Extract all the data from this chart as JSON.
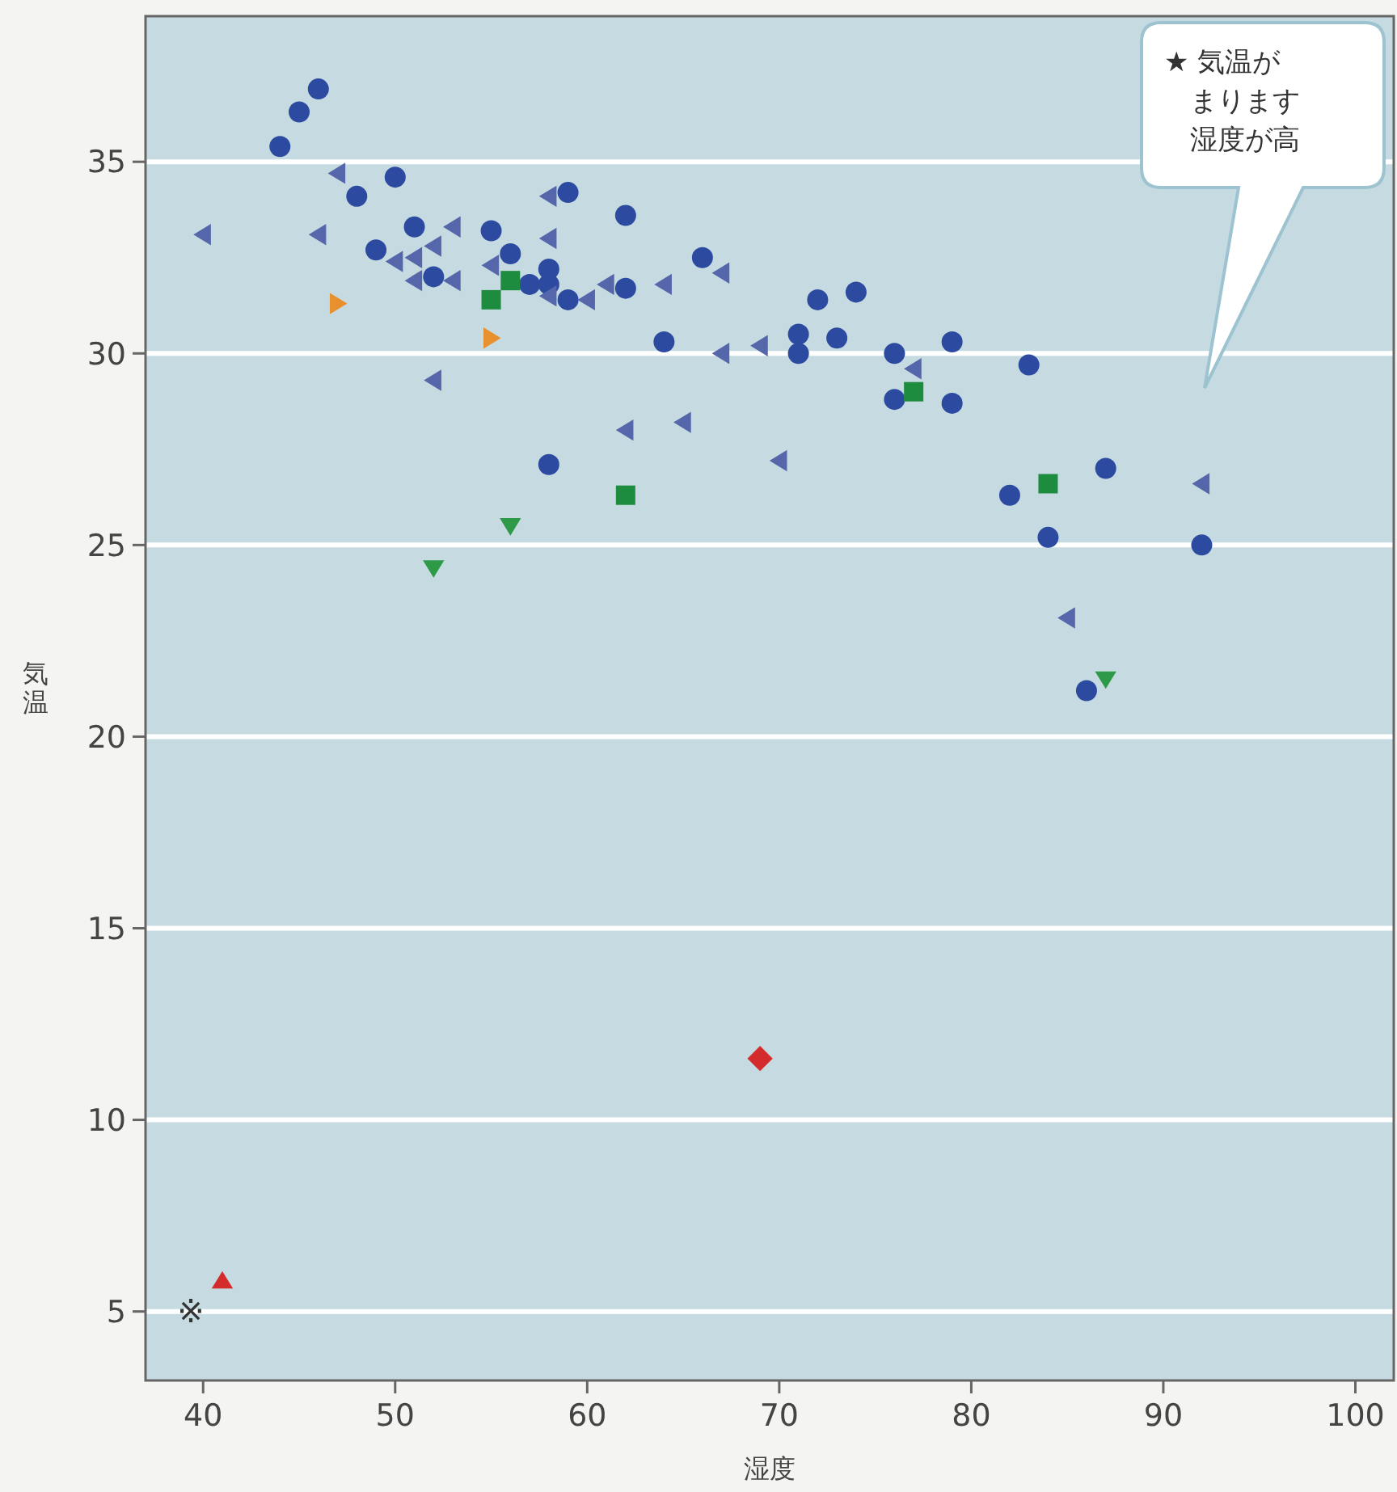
{
  "chart_data": {
    "type": "scatter",
    "xlabel": "湿度",
    "ylabel": "気温",
    "xlim": [
      37,
      102
    ],
    "ylim": [
      3.2,
      38.8
    ],
    "xticks": [
      40,
      50,
      60,
      70,
      80,
      90,
      100
    ],
    "yticks": [
      5,
      10,
      15,
      20,
      25,
      30,
      35
    ],
    "grid": "y",
    "series": [
      {
        "color": "#2c4aa0",
        "marker": "circle",
        "x": [
          46,
          45,
          44,
          50,
          48,
          59,
          62,
          49,
          51,
          55,
          56,
          52,
          58,
          57,
          58,
          59,
          62,
          58,
          66,
          72,
          74,
          64,
          71,
          71,
          73,
          76,
          79,
          83,
          76,
          79,
          82,
          84,
          86,
          87,
          92
        ],
        "values": [
          36.9,
          36.3,
          35.4,
          34.6,
          34.1,
          34.2,
          33.6,
          32.7,
          33.3,
          33.2,
          32.6,
          32.0,
          32.2,
          31.8,
          31.8,
          31.4,
          31.7,
          27.1,
          32.5,
          31.4,
          31.6,
          30.3,
          30.5,
          30.0,
          30.4,
          30.0,
          30.3,
          29.7,
          28.8,
          28.7,
          26.3,
          25.2,
          21.2,
          27.0,
          25.0
        ]
      },
      {
        "color": "#5566ab",
        "marker": "triangle-left",
        "x": [
          40,
          47,
          46,
          53,
          58,
          58,
          52,
          51,
          50,
          51,
          53,
          55,
          58,
          60,
          61,
          52,
          62,
          64,
          67,
          67,
          69,
          77,
          65,
          70,
          85,
          92
        ],
        "values": [
          33.1,
          34.7,
          33.1,
          33.3,
          34.1,
          33.0,
          32.8,
          32.5,
          32.4,
          31.9,
          31.9,
          32.3,
          31.5,
          31.4,
          31.8,
          29.3,
          28.0,
          31.8,
          32.1,
          30.0,
          30.2,
          29.6,
          28.2,
          27.2,
          23.1,
          26.6
        ]
      },
      {
        "color": "#1e8c3e",
        "marker": "square",
        "x": [
          55,
          56,
          62,
          77,
          84
        ],
        "values": [
          31.4,
          31.9,
          26.3,
          29.0,
          26.6
        ]
      },
      {
        "color": "#e8902e",
        "marker": "triangle-right",
        "x": [
          47,
          55
        ],
        "values": [
          31.3,
          30.4
        ]
      },
      {
        "color": "#2e9a48",
        "marker": "triangle-down",
        "x": [
          56,
          52,
          87
        ],
        "values": [
          25.5,
          24.4,
          21.5
        ]
      },
      {
        "color": "#d42c2c",
        "marker": "diamond",
        "x": [
          69
        ],
        "values": [
          11.6
        ]
      },
      {
        "color": "#d42c2c",
        "marker": "triangle",
        "x": [
          41
        ],
        "values": [
          5.8
        ]
      }
    ],
    "annotations": [
      "※",
      "★ 気温がまります湿度が高"
    ]
  }
}
